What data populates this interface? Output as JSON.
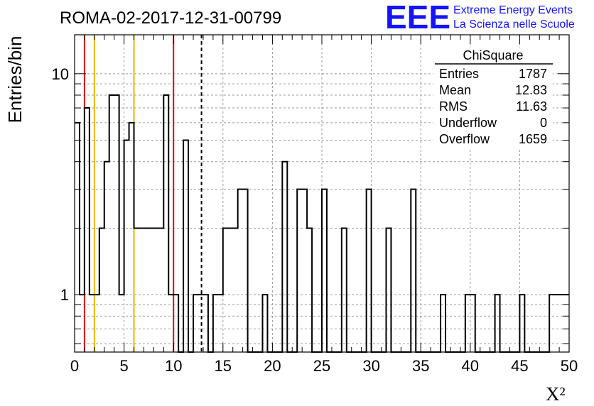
{
  "header": {
    "run_title": "ROMA-02-2017-12-31-00799",
    "logo_text": "EEE",
    "logo_line1": "Extreme Energy Events",
    "logo_line2": "La Scienza nelle Scuole",
    "logo_color": "#1414ff"
  },
  "stats_box": {
    "title": "ChiSquare",
    "rows": [
      {
        "label": "Entries",
        "value": "1787"
      },
      {
        "label": "Mean",
        "value": "12.83"
      },
      {
        "label": "RMS",
        "value": "11.63"
      },
      {
        "label": "Underflow",
        "value": "0"
      },
      {
        "label": "Overflow",
        "value": "1659"
      }
    ]
  },
  "chart_data": {
    "type": "histogram",
    "title": "ROMA-02-2017-12-31-00799",
    "xlabel": "X²",
    "ylabel": "Entries/bin",
    "xlim": [
      0,
      50
    ],
    "ylim": [
      0.55,
      15
    ],
    "yscale": "log",
    "grid": true,
    "x_ticks": [
      "0",
      "5",
      "10",
      "15",
      "20",
      "25",
      "30",
      "35",
      "40",
      "45",
      "50"
    ],
    "y_ticks": [
      "1",
      "10"
    ],
    "bin_width": 0.5,
    "bins": [
      {
        "x": 0.0,
        "count": 6
      },
      {
        "x": 0.5,
        "count": 1
      },
      {
        "x": 1.0,
        "count": 7
      },
      {
        "x": 1.5,
        "count": 1
      },
      {
        "x": 2.0,
        "count": 1
      },
      {
        "x": 2.5,
        "count": 2
      },
      {
        "x": 3.0,
        "count": 4
      },
      {
        "x": 3.5,
        "count": 8
      },
      {
        "x": 4.0,
        "count": 8
      },
      {
        "x": 4.5,
        "count": 1
      },
      {
        "x": 5.0,
        "count": 5
      },
      {
        "x": 5.5,
        "count": 6
      },
      {
        "x": 6.0,
        "count": 2
      },
      {
        "x": 6.5,
        "count": 2
      },
      {
        "x": 7.0,
        "count": 2
      },
      {
        "x": 7.5,
        "count": 2
      },
      {
        "x": 8.0,
        "count": 2
      },
      {
        "x": 8.5,
        "count": 2
      },
      {
        "x": 9.0,
        "count": 8
      },
      {
        "x": 9.5,
        "count": 1
      },
      {
        "x": 10.0,
        "count": 1
      },
      {
        "x": 10.5,
        "count": 0
      },
      {
        "x": 11.0,
        "count": 5
      },
      {
        "x": 11.5,
        "count": 0
      },
      {
        "x": 12.0,
        "count": 1
      },
      {
        "x": 12.5,
        "count": 1
      },
      {
        "x": 13.0,
        "count": 1
      },
      {
        "x": 13.5,
        "count": 0
      },
      {
        "x": 14.0,
        "count": 1
      },
      {
        "x": 14.5,
        "count": 1
      },
      {
        "x": 15.0,
        "count": 2
      },
      {
        "x": 15.5,
        "count": 2
      },
      {
        "x": 16.0,
        "count": 2
      },
      {
        "x": 16.5,
        "count": 3
      },
      {
        "x": 17.0,
        "count": 3
      },
      {
        "x": 17.5,
        "count": 0
      },
      {
        "x": 18.0,
        "count": 0
      },
      {
        "x": 18.5,
        "count": 0
      },
      {
        "x": 19.0,
        "count": 1
      },
      {
        "x": 19.5,
        "count": 0
      },
      {
        "x": 20.0,
        "count": 0
      },
      {
        "x": 20.5,
        "count": 0
      },
      {
        "x": 21.0,
        "count": 4
      },
      {
        "x": 21.5,
        "count": 0
      },
      {
        "x": 22.0,
        "count": 0
      },
      {
        "x": 22.5,
        "count": 3
      },
      {
        "x": 23.0,
        "count": 3
      },
      {
        "x": 23.5,
        "count": 2
      },
      {
        "x": 24.0,
        "count": 0
      },
      {
        "x": 24.5,
        "count": 0
      },
      {
        "x": 25.0,
        "count": 3
      },
      {
        "x": 25.5,
        "count": 0
      },
      {
        "x": 26.0,
        "count": 0
      },
      {
        "x": 26.5,
        "count": 0
      },
      {
        "x": 27.0,
        "count": 2
      },
      {
        "x": 27.5,
        "count": 0
      },
      {
        "x": 28.0,
        "count": 0
      },
      {
        "x": 28.5,
        "count": 0
      },
      {
        "x": 29.0,
        "count": 0
      },
      {
        "x": 29.5,
        "count": 3
      },
      {
        "x": 30.0,
        "count": 0
      },
      {
        "x": 30.5,
        "count": 0
      },
      {
        "x": 31.0,
        "count": 0
      },
      {
        "x": 31.5,
        "count": 2
      },
      {
        "x": 32.0,
        "count": 0
      },
      {
        "x": 32.5,
        "count": 0
      },
      {
        "x": 33.0,
        "count": 0
      },
      {
        "x": 33.5,
        "count": 0
      },
      {
        "x": 34.0,
        "count": 3
      },
      {
        "x": 34.5,
        "count": 0
      },
      {
        "x": 35.0,
        "count": 0
      },
      {
        "x": 35.5,
        "count": 0
      },
      {
        "x": 36.0,
        "count": 0
      },
      {
        "x": 36.5,
        "count": 0
      },
      {
        "x": 37.0,
        "count": 1
      },
      {
        "x": 37.5,
        "count": 0
      },
      {
        "x": 38.0,
        "count": 0
      },
      {
        "x": 38.5,
        "count": 0
      },
      {
        "x": 39.0,
        "count": 0
      },
      {
        "x": 39.5,
        "count": 1
      },
      {
        "x": 40.0,
        "count": 1
      },
      {
        "x": 40.5,
        "count": 0
      },
      {
        "x": 41.0,
        "count": 0
      },
      {
        "x": 41.5,
        "count": 0
      },
      {
        "x": 42.0,
        "count": 0
      },
      {
        "x": 42.5,
        "count": 1
      },
      {
        "x": 43.0,
        "count": 0
      },
      {
        "x": 43.5,
        "count": 0
      },
      {
        "x": 44.0,
        "count": 0
      },
      {
        "x": 44.5,
        "count": 0
      },
      {
        "x": 45.0,
        "count": 1
      },
      {
        "x": 45.5,
        "count": 0
      },
      {
        "x": 46.0,
        "count": 0
      },
      {
        "x": 46.5,
        "count": 0
      },
      {
        "x": 47.0,
        "count": 0
      },
      {
        "x": 47.5,
        "count": 0
      },
      {
        "x": 48.0,
        "count": 1
      },
      {
        "x": 48.5,
        "count": 1
      },
      {
        "x": 49.0,
        "count": 1
      },
      {
        "x": 49.5,
        "count": 1
      }
    ],
    "vertical_markers": [
      {
        "x": 1.0,
        "color": "#e00000",
        "style": "solid"
      },
      {
        "x": 10.0,
        "color": "#e00000",
        "style": "solid"
      },
      {
        "x": 2.0,
        "color": "#f0b400",
        "style": "solid"
      },
      {
        "x": 6.0,
        "color": "#f0b400",
        "style": "solid"
      },
      {
        "x": 12.83,
        "color": "#000000",
        "style": "dashed"
      }
    ]
  }
}
